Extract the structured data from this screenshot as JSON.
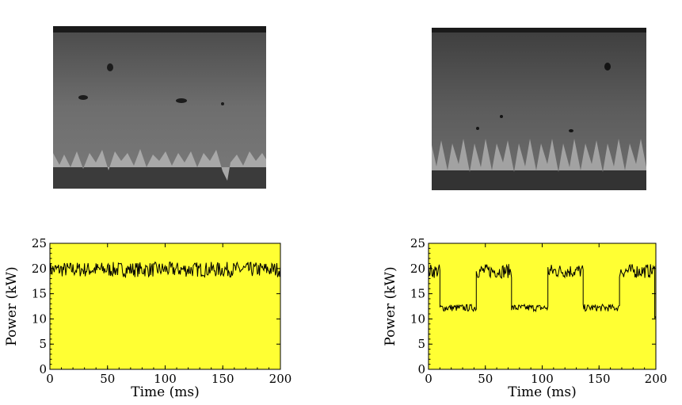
{
  "photos": [
    {
      "name": "weld-cross-section-constant-power",
      "tone": "#6f6f6f"
    },
    {
      "name": "weld-cross-section-modulated-power",
      "tone": "#626262"
    }
  ],
  "chart_data": [
    {
      "type": "line",
      "title": "",
      "xlabel": "Time (ms)",
      "ylabel": "Power (kW)",
      "xlim": [
        0,
        200
      ],
      "ylim": [
        0,
        25
      ],
      "xticks": [
        "0",
        "50",
        "100",
        "150",
        "200"
      ],
      "yticks": [
        "0",
        "5",
        "10",
        "15",
        "20",
        "25"
      ],
      "background": "#ffff33",
      "line_color": "#000000",
      "grid": false,
      "series": [
        {
          "segments": [
            {
              "x0": 0,
              "x1": 200,
              "mean": 19.8,
              "amplitude": 1.5
            }
          ]
        }
      ]
    },
    {
      "type": "line",
      "title": "",
      "xlabel": "Time (ms)",
      "ylabel": "Power (kW)",
      "xlim": [
        0,
        200
      ],
      "ylim": [
        0,
        25
      ],
      "xticks": [
        "0",
        "50",
        "100",
        "150",
        "200"
      ],
      "yticks": [
        "0",
        "5",
        "10",
        "15",
        "20",
        "25"
      ],
      "background": "#ffff33",
      "line_color": "#000000",
      "grid": false,
      "series": [
        {
          "segments": [
            {
              "x0": 0,
              "x1": 10,
              "mean": 19.5,
              "amplitude": 1.4
            },
            {
              "x0": 10,
              "x1": 42,
              "mean": 12.2,
              "amplitude": 0.7
            },
            {
              "x0": 42,
              "x1": 73,
              "mean": 19.5,
              "amplitude": 1.4
            },
            {
              "x0": 73,
              "x1": 105,
              "mean": 12.2,
              "amplitude": 0.7
            },
            {
              "x0": 105,
              "x1": 136,
              "mean": 19.5,
              "amplitude": 1.4
            },
            {
              "x0": 136,
              "x1": 168,
              "mean": 12.2,
              "amplitude": 0.7
            },
            {
              "x0": 168,
              "x1": 199,
              "mean": 19.5,
              "amplitude": 1.4
            },
            {
              "x0": 199,
              "x1": 200,
              "mean": 10.5,
              "amplitude": 0.3
            }
          ]
        }
      ]
    }
  ]
}
